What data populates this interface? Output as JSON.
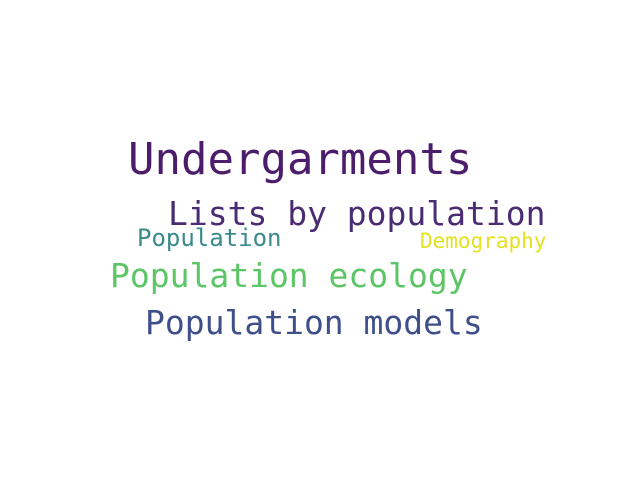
{
  "words": [
    {
      "text": "Undergarments",
      "color": "#4b1d6b"
    },
    {
      "text": "Lists by population",
      "color": "#4a2c73"
    },
    {
      "text": "Population",
      "color": "#3a8a8c"
    },
    {
      "text": "Demography",
      "color": "#e3e120"
    },
    {
      "text": "Population ecology",
      "color": "#5cc565"
    },
    {
      "text": "Population models",
      "color": "#3e4f8a"
    }
  ]
}
